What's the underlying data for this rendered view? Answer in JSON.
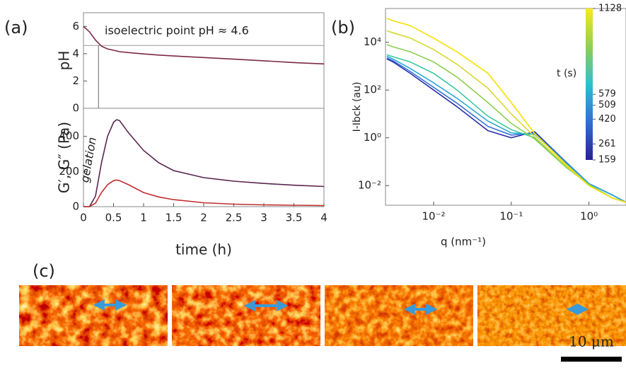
{
  "figure": {
    "panel_labels": [
      "(a)",
      "(b)",
      "(c)"
    ],
    "scale_bar": "10 μm"
  },
  "chart_data": [
    {
      "type": "line",
      "ylabel": "pH",
      "annotation": "isoelectric point pH ≈ 4.6",
      "x": [
        0,
        0.1,
        0.2,
        0.3,
        0.4,
        0.5,
        0.55,
        0.6,
        0.75,
        1,
        1.25,
        1.5,
        2,
        2.5,
        3,
        3.5,
        4
      ],
      "xlim": [
        0,
        4
      ],
      "ylim": [
        0,
        7
      ],
      "yticks": [
        0,
        2,
        4,
        6
      ],
      "hline": 4.6,
      "vline": 0.25,
      "series": [
        {
          "color": "#7a2848",
          "values": [
            6,
            5.6,
            5.0,
            4.55,
            4.35,
            4.25,
            4.2,
            4.15,
            4.08,
            3.98,
            3.9,
            3.83,
            3.72,
            3.6,
            3.48,
            3.35,
            3.25
          ]
        }
      ]
    },
    {
      "type": "line",
      "ylabel": "G′, G″ (Pa)",
      "xlabel": "time (h)",
      "annotation": "gelation",
      "x": [
        0,
        0.1,
        0.2,
        0.3,
        0.4,
        0.5,
        0.55,
        0.6,
        0.75,
        1,
        1.25,
        1.5,
        2,
        2.5,
        3,
        3.5,
        4
      ],
      "xlim": [
        0,
        4
      ],
      "xticks": [
        0,
        0.5,
        1,
        1.5,
        2,
        2.5,
        3,
        3.5,
        4
      ],
      "ylim": [
        0,
        560
      ],
      "yticks": [
        0,
        200,
        400
      ],
      "series": [
        {
          "color": "#5a2450",
          "values": [
            0,
            0,
            60,
            250,
            400,
            480,
            495,
            490,
            420,
            320,
            250,
            205,
            165,
            145,
            132,
            122,
            115
          ]
        },
        {
          "color": "#c0302f",
          "values": [
            0,
            0,
            20,
            80,
            125,
            148,
            152,
            148,
            125,
            80,
            55,
            40,
            22,
            14,
            10,
            8,
            6
          ]
        }
      ]
    },
    {
      "type": "line",
      "log_x": true,
      "log_y": true,
      "xlabel": "q (nm⁻¹)",
      "ylabel": "I-Ibck (au)",
      "x": [
        0.0025,
        0.003,
        0.005,
        0.01,
        0.02,
        0.05,
        0.1,
        0.2,
        0.5,
        1,
        2,
        3
      ],
      "xlim": [
        0.0024,
        3
      ],
      "ylim": [
        0.0015,
        260000
      ],
      "xticks": [
        {
          "value": 0.01,
          "label": "10⁻²"
        },
        {
          "value": 0.1,
          "label": "10⁻¹"
        },
        {
          "value": 1,
          "label": "10⁰"
        }
      ],
      "yticks": [
        {
          "value": 0.01,
          "label": "10⁻²"
        },
        {
          "value": 1,
          "label": "10⁰"
        },
        {
          "value": 100,
          "label": "10²"
        },
        {
          "value": 10000,
          "label": "10⁴"
        }
      ],
      "colorbar": {
        "label": "t (s)",
        "lim": [
          159,
          1128
        ],
        "ticks": [
          159,
          261,
          420,
          509,
          579,
          1128
        ]
      },
      "series": [
        {
          "color": "#2a2fa8",
          "values": [
            2000,
            1500,
            500,
            100,
            20,
            2,
            1.0,
            1.8,
            0.1,
            0.012,
            0.004,
            0.002
          ]
        },
        {
          "color": "#2f6fd8",
          "values": [
            2200,
            1700,
            600,
            130,
            28,
            3,
            1.3,
            1.6,
            0.1,
            0.012,
            0.004,
            0.002
          ]
        },
        {
          "color": "#2aa8d8",
          "values": [
            2600,
            2000,
            800,
            200,
            45,
            5,
            1.6,
            1.4,
            0.09,
            0.012,
            0.004,
            0.002
          ]
        },
        {
          "color": "#3cc8a0",
          "values": [
            3000,
            2500,
            1500,
            500,
            100,
            8,
            2.2,
            1.0,
            0.07,
            0.011,
            0.003,
            0.002
          ]
        },
        {
          "color": "#8ad050",
          "values": [
            8000,
            6500,
            4000,
            1500,
            350,
            30,
            4,
            0.9,
            0.06,
            0.011,
            0.003,
            0.002
          ]
        },
        {
          "color": "#d8d830",
          "values": [
            30000,
            25000,
            15000,
            5000,
            1200,
            120,
            10,
            1.1,
            0.07,
            0.01,
            0.003,
            0.002
          ]
        },
        {
          "color": "#f5e000",
          "values": [
            100000,
            80000,
            50000,
            15000,
            4000,
            500,
            30,
            1.5,
            0.08,
            0.01,
            0.003,
            0.002
          ]
        }
      ]
    }
  ]
}
